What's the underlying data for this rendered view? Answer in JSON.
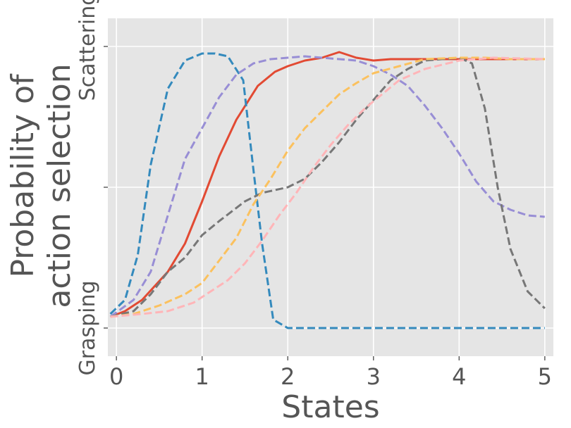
{
  "chart_data": {
    "type": "line",
    "xlabel": "States",
    "ylabel_lines": [
      "Probability of",
      "action selection"
    ],
    "xlim": [
      -0.1,
      5.1
    ],
    "ylim": [
      -0.1,
      1.1
    ],
    "xticks": [
      0,
      1,
      2,
      3,
      4,
      5
    ],
    "xtick_labels": [
      "0",
      "1",
      "2",
      "3",
      "4",
      "5"
    ],
    "yticks": [
      0,
      0.5,
      1
    ],
    "ytick_labels": [
      "Grasping",
      "",
      "Scattering"
    ],
    "grid": true,
    "legend": false,
    "background": "#e5e5e5",
    "series": [
      {
        "color": "#e24a33",
        "dash": "solid",
        "x": [
          -0.07,
          0.1,
          0.3,
          0.6,
          0.8,
          1.0,
          1.2,
          1.4,
          1.65,
          1.85,
          2.0,
          2.2,
          2.4,
          2.6,
          2.8,
          3.0,
          3.2,
          3.5,
          4.0,
          4.5,
          5.0
        ],
        "y": [
          0.04,
          0.06,
          0.1,
          0.2,
          0.3,
          0.45,
          0.61,
          0.74,
          0.86,
          0.91,
          0.93,
          0.95,
          0.96,
          0.98,
          0.96,
          0.95,
          0.955,
          0.955,
          0.955,
          0.955,
          0.955
        ]
      },
      {
        "color": "#348abd",
        "dash": "dashed",
        "x": [
          -0.07,
          0.1,
          0.25,
          0.4,
          0.6,
          0.8,
          1.0,
          1.15,
          1.3,
          1.48,
          1.6,
          1.7,
          1.83,
          2.0,
          2.5,
          3.0,
          3.5,
          4.0,
          4.5,
          5.0
        ],
        "y": [
          0.05,
          0.1,
          0.26,
          0.58,
          0.85,
          0.95,
          0.975,
          0.975,
          0.965,
          0.88,
          0.56,
          0.3,
          0.03,
          0.0,
          0.0,
          0.0,
          0.0,
          0.0,
          0.0,
          0.0
        ]
      },
      {
        "color": "#988ed5",
        "dash": "dashed",
        "x": [
          -0.07,
          0.2,
          0.4,
          0.6,
          0.8,
          1.0,
          1.2,
          1.4,
          1.6,
          1.8,
          2.0,
          2.2,
          2.4,
          2.6,
          2.8,
          3.0,
          3.2,
          3.4,
          3.6,
          3.8,
          4.0,
          4.2,
          4.4,
          4.6,
          4.8,
          5.0
        ],
        "y": [
          0.04,
          0.1,
          0.2,
          0.4,
          0.6,
          0.71,
          0.82,
          0.9,
          0.94,
          0.955,
          0.96,
          0.965,
          0.96,
          0.955,
          0.95,
          0.93,
          0.9,
          0.86,
          0.79,
          0.71,
          0.62,
          0.52,
          0.45,
          0.42,
          0.4,
          0.395
        ]
      },
      {
        "color": "#777777",
        "dash": "dashed",
        "x": [
          -0.07,
          0.2,
          0.4,
          0.6,
          0.8,
          1.0,
          1.2,
          1.5,
          1.7,
          2.0,
          2.2,
          2.4,
          2.6,
          2.8,
          3.0,
          3.2,
          3.4,
          3.6,
          3.8,
          4.0,
          4.15,
          4.3,
          4.45,
          4.6,
          4.8,
          5.0
        ],
        "y": [
          0.04,
          0.06,
          0.12,
          0.2,
          0.25,
          0.33,
          0.38,
          0.45,
          0.48,
          0.5,
          0.53,
          0.59,
          0.66,
          0.74,
          0.81,
          0.88,
          0.92,
          0.95,
          0.955,
          0.96,
          0.94,
          0.78,
          0.5,
          0.28,
          0.13,
          0.07
        ]
      },
      {
        "color": "#fbc15e",
        "dash": "dashed",
        "x": [
          -0.07,
          0.2,
          0.5,
          0.8,
          1.0,
          1.2,
          1.4,
          1.6,
          1.8,
          2.0,
          2.2,
          2.4,
          2.6,
          2.8,
          3.0,
          3.3,
          3.6,
          4.0,
          4.3,
          4.6,
          5.0
        ],
        "y": [
          0.04,
          0.05,
          0.08,
          0.12,
          0.16,
          0.24,
          0.32,
          0.44,
          0.53,
          0.63,
          0.71,
          0.77,
          0.83,
          0.87,
          0.905,
          0.93,
          0.955,
          0.96,
          0.96,
          0.955,
          0.955
        ]
      },
      {
        "color": "#ffb5b8",
        "dash": "dashed",
        "x": [
          -0.07,
          0.3,
          0.6,
          0.9,
          1.1,
          1.3,
          1.5,
          1.7,
          1.9,
          2.1,
          2.3,
          2.5,
          2.7,
          2.9,
          3.1,
          3.3,
          3.6,
          4.0,
          4.4,
          5.0
        ],
        "y": [
          0.04,
          0.05,
          0.06,
          0.09,
          0.13,
          0.17,
          0.23,
          0.31,
          0.4,
          0.48,
          0.57,
          0.65,
          0.72,
          0.78,
          0.83,
          0.88,
          0.92,
          0.95,
          0.96,
          0.955
        ]
      }
    ]
  }
}
